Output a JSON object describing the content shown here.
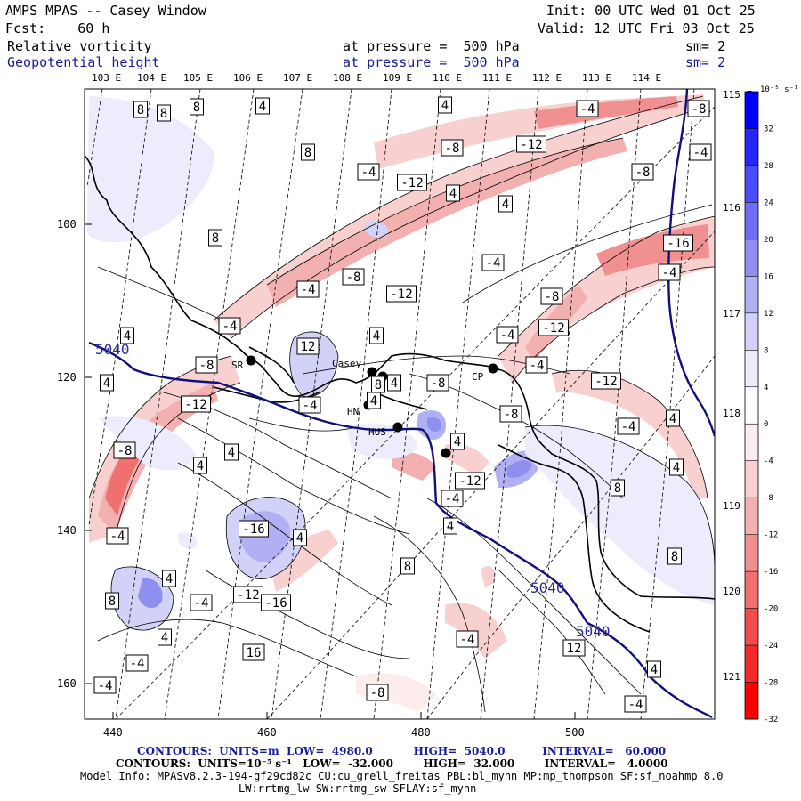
{
  "header": {
    "title": "AMPS MPAS -- Casey Window",
    "init": "Init: 00 UTC Wed 01 Oct 25",
    "fcst": "Fcst:    60 h",
    "valid": "Valid: 12 UTC Fri 03 Oct 25",
    "field1": "Relative vorticity",
    "field1_level": "at pressure =  500 hPa",
    "field1_sm": "sm= 2",
    "field2": "Geopotential height",
    "field2_level": "at pressure =  500 hPa",
    "field2_sm": "sm= 2"
  },
  "lon_labels": [
    "103 E",
    "104 E",
    "105 E",
    "106 E",
    "107 E",
    "108 E",
    "109 E",
    "110 E",
    "111 E",
    "112 E",
    "113 E",
    "114 E"
  ],
  "lat_labels": [
    "115 E",
    "116 E",
    "117 E",
    "118 E",
    "119 E",
    "120 E",
    "121 E"
  ],
  "x_ticks": [
    "440",
    "460",
    "480",
    "500"
  ],
  "y_ticks": [
    "100",
    "120",
    "140",
    "160"
  ],
  "stations": [
    "SR",
    "Casey",
    "CP",
    "HN",
    "HUS"
  ],
  "height_contour_labels": [
    "5040",
    "5040",
    "5040"
  ],
  "vorticity_labels": [
    "8",
    "8",
    "8",
    "4",
    "4",
    "8",
    "-4",
    "-12",
    "4",
    "-8",
    "-12",
    "-4",
    "-8",
    "4",
    "8",
    "-4",
    "-4",
    "-8",
    "-12",
    "4",
    "-4",
    "-8",
    "-16",
    "-4",
    "12",
    "4",
    "-8",
    "-12",
    "-8",
    "-12",
    "4",
    "4",
    "-4",
    "-12",
    "-8",
    "-4",
    "-8",
    "4",
    "4",
    "4",
    "-16",
    "4",
    "8",
    "-12",
    "8",
    "-4",
    "4",
    "-4",
    "4",
    "16",
    "-12",
    "8",
    "-4",
    "-4",
    "-8",
    "12",
    "8",
    "4",
    "-4",
    "4",
    "4",
    "-4",
    "-4",
    "8",
    "4",
    "4",
    "-16",
    "-4",
    "-4",
    "-8",
    "-4"
  ],
  "colorbar": {
    "unit": "10⁻⁵ s⁻¹",
    "ticks": [
      "32",
      "28",
      "24",
      "20",
      "16",
      "12",
      "8",
      "4",
      "0",
      "-4",
      "-8",
      "-12",
      "-16",
      "-20",
      "-24",
      "-28",
      "-32"
    ],
    "colors": [
      "#0000ff",
      "#2626ff",
      "#4c4cff",
      "#6e6ef5",
      "#8f8ff0",
      "#b0b0f2",
      "#d2d2f8",
      "#ececfc",
      "#ffffff",
      "#fcecec",
      "#f8d0d0",
      "#f2b0b0",
      "#f09090",
      "#f07070",
      "#f24c4c",
      "#f52a2a",
      "#ff0000"
    ]
  },
  "footer": {
    "line1": "CONTOURS:  UNITS=m  LOW=  4980.0           HIGH=  5040.0          INTERVAL=   60.000",
    "line2": "CONTOURS:  UNITS=10⁻⁵ s⁻¹   LOW=  -32.000        HIGH=  32.000        INTERVAL=   4.0000",
    "line3": "Model Info: MPASv8.2.3-194-gf29cd82c CU:cu_grell_freitas PBL:bl_mynn MP:mp_thompson SF:sf_noahmp 8.0",
    "line4": "LW:rrtmg_lw SW:rrtmg_sw SFLAY:sf_mynn"
  }
}
